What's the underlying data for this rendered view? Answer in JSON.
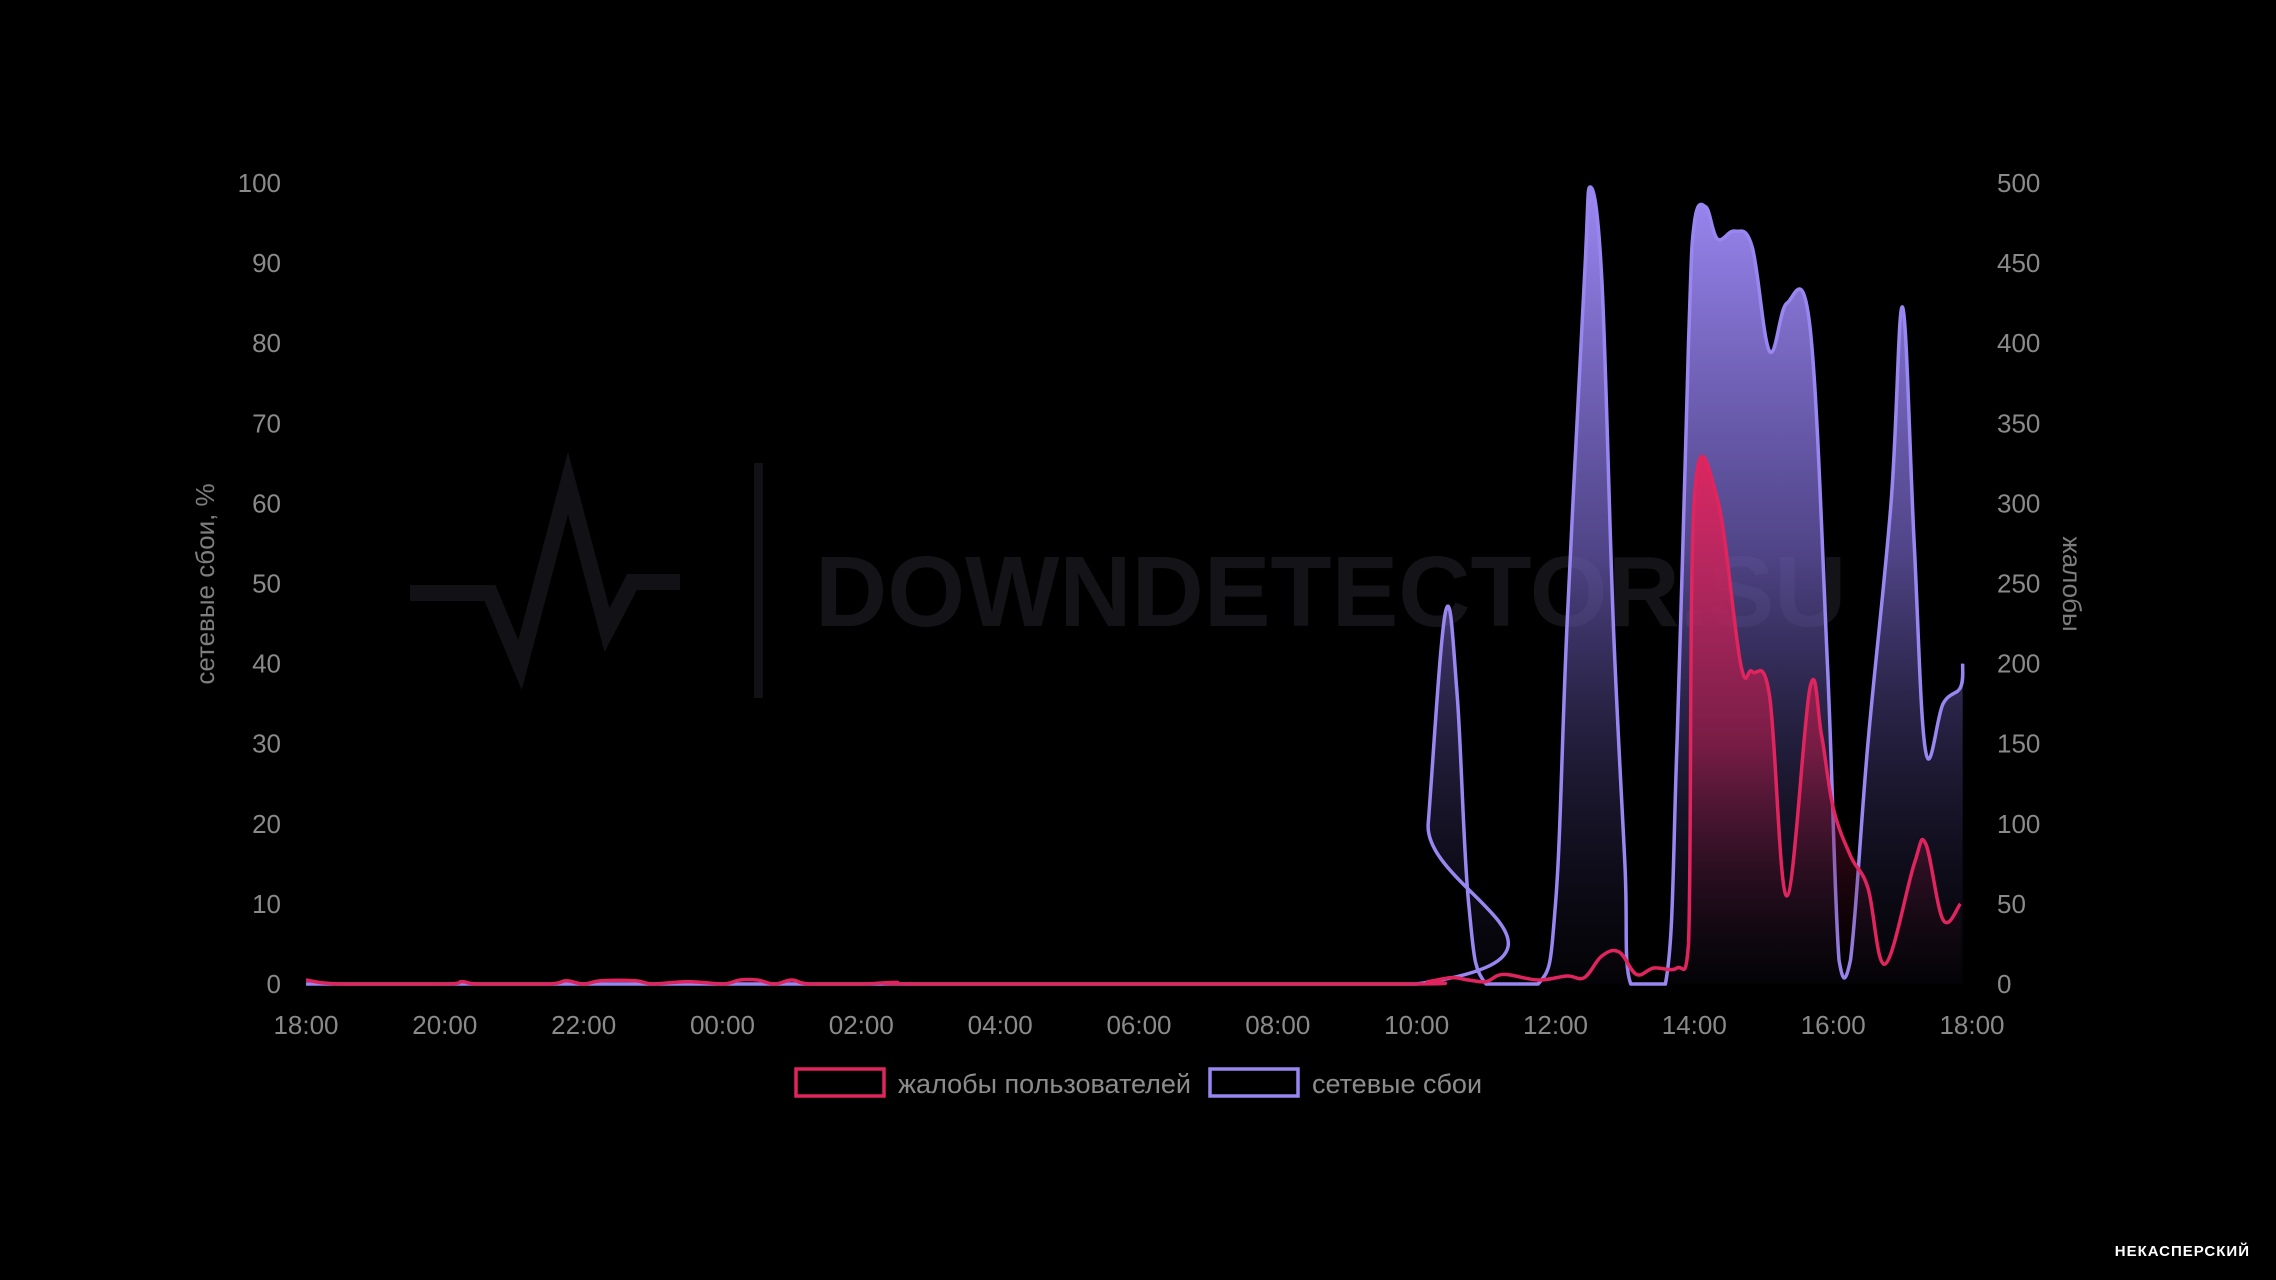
{
  "brand": "НЕКАСПЕРСКИЙ",
  "watermark": "DOWNDETECTOR.SU",
  "colors": {
    "background": "#000000",
    "complaints": "#e0245e",
    "failures": "#9a86f0",
    "text": "#8a8a8a"
  },
  "chart_data": {
    "type": "area",
    "xlabel": "",
    "y_left_label": "сетевые сбои, %",
    "y_right_label": "жалобы",
    "x_range_hours": [
      18,
      42
    ],
    "x_ticks": [
      "18:00",
      "20:00",
      "22:00",
      "00:00",
      "02:00",
      "04:00",
      "06:00",
      "08:00",
      "10:00",
      "12:00",
      "14:00",
      "16:00",
      "18:00"
    ],
    "y_left_ticks": [
      "0",
      "10",
      "20",
      "30",
      "40",
      "50",
      "60",
      "70",
      "80",
      "90",
      "100"
    ],
    "y_right_ticks": [
      "0",
      "50",
      "100",
      "150",
      "200",
      "250",
      "300",
      "350",
      "400",
      "450",
      "500"
    ],
    "ylim_left": [
      0,
      100
    ],
    "ylim_right": [
      0,
      500
    ],
    "grid": false,
    "legend_position": "bottom-center",
    "series": [
      {
        "name": "жалобы пользователей",
        "axis": "left",
        "color": "#e0245e",
        "points": [
          [
            "18:00",
            0.5
          ],
          [
            "18:30",
            0
          ],
          [
            "20:00",
            0
          ],
          [
            "20:15",
            0.3
          ],
          [
            "20:30",
            0
          ],
          [
            "21:30",
            0
          ],
          [
            "21:45",
            0.4
          ],
          [
            "22:00",
            0
          ],
          [
            "22:15",
            0.4
          ],
          [
            "22:45",
            0.4
          ],
          [
            "23:00",
            0
          ],
          [
            "23:30",
            0.3
          ],
          [
            "00:00",
            0
          ],
          [
            "00:15",
            0.5
          ],
          [
            "00:30",
            0.5
          ],
          [
            "00:45",
            0
          ],
          [
            "01:00",
            0.5
          ],
          [
            "01:15",
            0
          ],
          [
            "02:00",
            0
          ],
          [
            "02:30",
            0.2
          ],
          [
            "03:00",
            0
          ],
          [
            "09:45",
            0
          ],
          [
            "10:10",
            0.3
          ],
          [
            "10:30",
            0.8
          ],
          [
            "10:45",
            0.5
          ],
          [
            "11:00",
            0.3
          ],
          [
            "11:15",
            1.2
          ],
          [
            "11:45",
            0.5
          ],
          [
            "12:10",
            1
          ],
          [
            "12:25",
            0.8
          ],
          [
            "12:40",
            3.5
          ],
          [
            "12:55",
            4
          ],
          [
            "13:10",
            1.2
          ],
          [
            "13:25",
            2
          ],
          [
            "13:45",
            2
          ],
          [
            "13:55",
            5
          ],
          [
            "14:00",
            60.5
          ],
          [
            "14:20",
            60.5
          ],
          [
            "14:40",
            40
          ],
          [
            "14:50",
            39
          ],
          [
            "15:05",
            36
          ],
          [
            "15:20",
            11
          ],
          [
            "15:40",
            37
          ],
          [
            "15:50",
            31
          ],
          [
            "16:00",
            22
          ],
          [
            "16:15",
            16
          ],
          [
            "16:30",
            12
          ],
          [
            "16:45",
            2.5
          ],
          [
            "17:10",
            15
          ],
          [
            "17:20",
            17.5
          ],
          [
            "17:35",
            8
          ],
          [
            "17:50",
            10
          ]
        ]
      },
      {
        "name": "сетевые сбои",
        "axis": "left",
        "color": "#9a86f0",
        "points": [
          [
            "18:00",
            0
          ],
          [
            "10:00",
            0
          ],
          [
            "10:10",
            20
          ],
          [
            "10:25",
            46.5
          ],
          [
            "10:35",
            36
          ],
          [
            "10:45",
            10
          ],
          [
            "11:00",
            0
          ],
          [
            "11:45",
            0
          ],
          [
            "12:00",
            10
          ],
          [
            "12:10",
            45
          ],
          [
            "12:25",
            88
          ],
          [
            "12:30",
            99.5
          ],
          [
            "12:40",
            88
          ],
          [
            "12:50",
            45
          ],
          [
            "13:00",
            15
          ],
          [
            "13:05",
            0
          ],
          [
            "13:35",
            0
          ],
          [
            "13:45",
            30
          ],
          [
            "13:55",
            80
          ],
          [
            "14:00",
            95
          ],
          [
            "14:10",
            97
          ],
          [
            "14:20",
            93
          ],
          [
            "14:35",
            94
          ],
          [
            "14:50",
            92
          ],
          [
            "15:05",
            79
          ],
          [
            "15:20",
            85
          ],
          [
            "15:40",
            82
          ],
          [
            "15:55",
            40
          ],
          [
            "16:05",
            3
          ],
          [
            "16:15",
            3
          ],
          [
            "16:30",
            30
          ],
          [
            "16:50",
            60
          ],
          [
            "17:00",
            84.5
          ],
          [
            "17:10",
            55
          ],
          [
            "17:20",
            29
          ],
          [
            "17:35",
            35
          ],
          [
            "17:50",
            37
          ],
          [
            "17:52",
            40
          ]
        ]
      }
    ]
  }
}
